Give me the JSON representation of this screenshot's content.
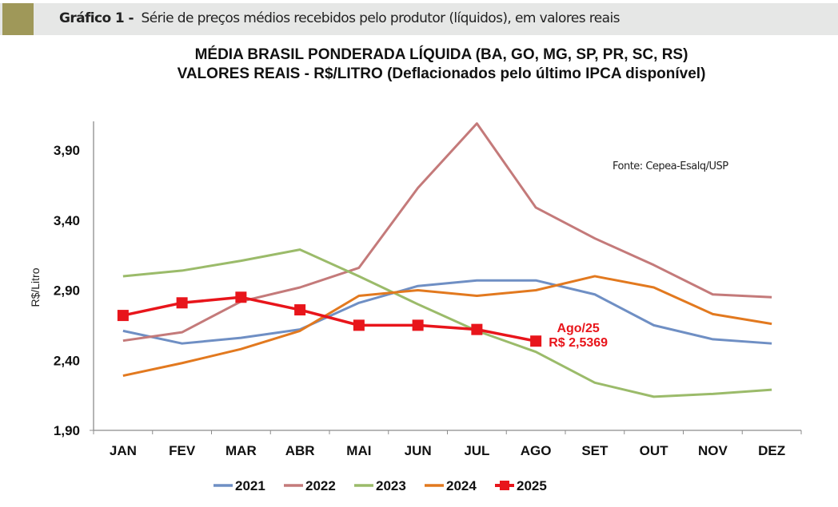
{
  "header": {
    "label": "Gráfico 1 -",
    "description": "Série de preços médios recebidos pelo produtor (líquidos), em valores reais"
  },
  "source_note": "Fonte: Cepea-Esalq/USP",
  "chart_data": {
    "type": "line",
    "title": "MÉDIA BRASIL PONDERADA LÍQUIDA (BA, GO, MG, SP, PR, SC, RS)",
    "subtitle": "VALORES REAIS - R$/LITRO (Deflacionados pelo último IPCA disponível)",
    "xlabel": "",
    "ylabel": "R$/Litro",
    "ylim": [
      1.9,
      4.1
    ],
    "yticks": [
      1.9,
      2.4,
      2.9,
      3.4,
      3.9
    ],
    "ytick_labels": [
      "1,90",
      "2,40",
      "2,90",
      "3,40",
      "3,90"
    ],
    "grid": false,
    "legend_position": "bottom",
    "categories": [
      "JAN",
      "FEV",
      "MAR",
      "ABR",
      "MAI",
      "JUN",
      "JUL",
      "AGO",
      "SET",
      "OUT",
      "NOV",
      "DEZ"
    ],
    "series": [
      {
        "name": "2021",
        "color": "#6f8fc4",
        "marker": "none",
        "values": [
          2.61,
          2.52,
          2.56,
          2.62,
          2.81,
          2.93,
          2.97,
          2.97,
          2.87,
          2.65,
          2.55,
          2.52
        ]
      },
      {
        "name": "2022",
        "color": "#c47a7a",
        "marker": "none",
        "values": [
          2.54,
          2.6,
          2.82,
          2.92,
          3.06,
          3.63,
          4.09,
          3.49,
          3.27,
          3.08,
          2.87,
          2.85
        ]
      },
      {
        "name": "2023",
        "color": "#9bbb6a",
        "marker": "none",
        "values": [
          3.0,
          3.04,
          3.11,
          3.19,
          3.0,
          2.8,
          2.61,
          2.46,
          2.24,
          2.14,
          2.16,
          2.19
        ]
      },
      {
        "name": "2024",
        "color": "#e2791f",
        "marker": "none",
        "values": [
          2.29,
          2.38,
          2.48,
          2.61,
          2.86,
          2.9,
          2.86,
          2.9,
          3.0,
          2.92,
          2.73,
          2.66
        ]
      },
      {
        "name": "2025",
        "color": "#e8151b",
        "marker": "square",
        "values": [
          2.72,
          2.81,
          2.85,
          2.76,
          2.65,
          2.65,
          2.62,
          2.5369,
          null,
          null,
          null,
          null
        ]
      }
    ],
    "annotations": [
      {
        "series": "2025",
        "category": "AGO",
        "lines": [
          "Ago/25",
          "R$ 2,5369"
        ],
        "color": "#e8151b"
      }
    ]
  }
}
